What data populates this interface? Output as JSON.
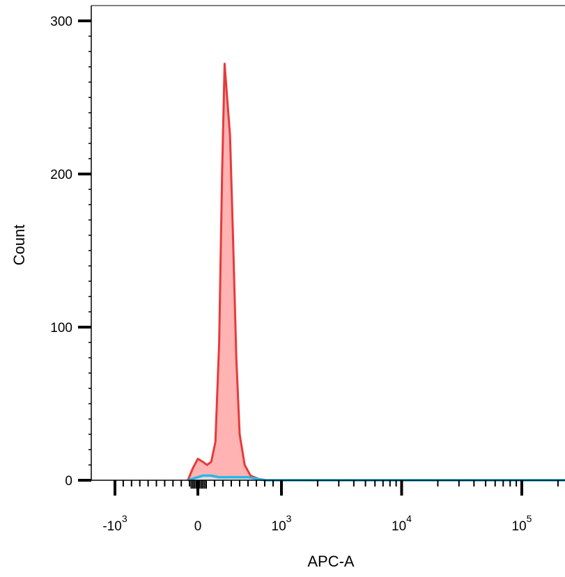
{
  "chart_data": {
    "type": "area",
    "xlabel": "APC-A",
    "ylabel": "Count",
    "x_scale": "biexponential",
    "x_ticks": [
      {
        "value": -1000,
        "base": "-10",
        "exp": "3"
      },
      {
        "value": 0,
        "base": "0",
        "exp": ""
      },
      {
        "value": 1000,
        "base": "10",
        "exp": "3"
      },
      {
        "value": 10000,
        "base": "10",
        "exp": "4"
      },
      {
        "value": 100000,
        "base": "10",
        "exp": "5"
      }
    ],
    "y_ticks": [
      "0",
      "100",
      "200",
      "300"
    ],
    "ylim": [
      0,
      300
    ],
    "grid": false,
    "legend": "none",
    "series": [
      {
        "color": "#e8393a",
        "fill": "#ffb3b3",
        "x": [
          -120,
          -60,
          0,
          60,
          110,
          160,
          210,
          255,
          290,
          320,
          350,
          385,
          420,
          460,
          500,
          560,
          630,
          720,
          820,
          1000,
          3000,
          10000,
          100000,
          262144
        ],
        "y": [
          0,
          8,
          14,
          12,
          10,
          12,
          25,
          90,
          200,
          272,
          250,
          225,
          160,
          80,
          30,
          10,
          3,
          1,
          0,
          0,
          0,
          0,
          0,
          0
        ]
      },
      {
        "color": "#29b6e8",
        "fill": "#dddddd",
        "x": [
          -120,
          0,
          60,
          100,
          160,
          250,
          400,
          600,
          700,
          800,
          1000,
          3000,
          10000,
          100000,
          262144
        ],
        "y": [
          0,
          2,
          3,
          3,
          3,
          2,
          2,
          2,
          1,
          0,
          0,
          0,
          0,
          0,
          0
        ]
      }
    ]
  }
}
